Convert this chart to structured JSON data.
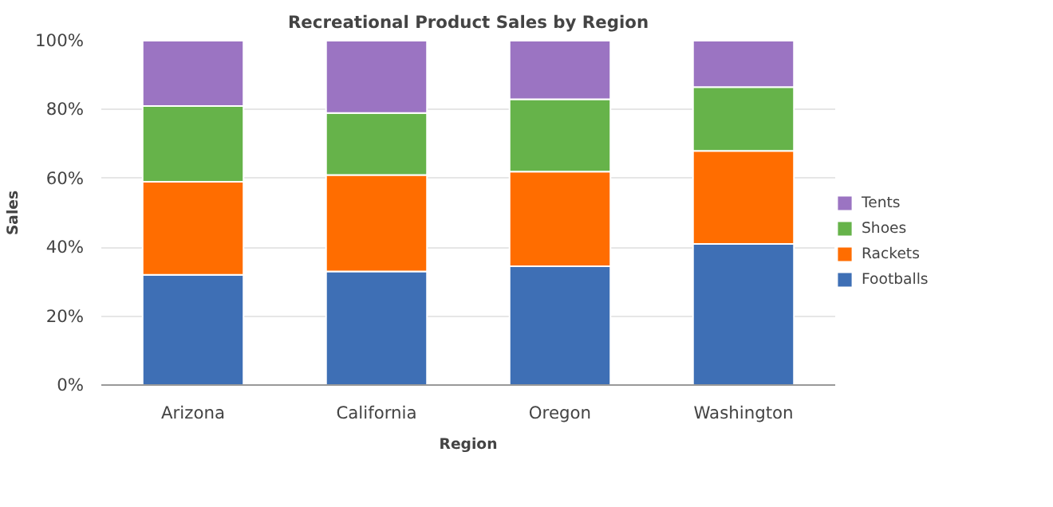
{
  "chart_data": {
    "type": "bar",
    "title": "Recreational Product Sales by Region",
    "xlabel": "Region",
    "ylabel": "Sales",
    "categories": [
      "Arizona",
      "California",
      "Oregon",
      "Washington"
    ],
    "stacked": true,
    "series": [
      {
        "name": "Footballs",
        "color": "#3e6fb5",
        "values": [
          32,
          33,
          34.5,
          41
        ]
      },
      {
        "name": "Rackets",
        "color": "#ff6d00",
        "values": [
          27,
          28,
          27.5,
          27
        ]
      },
      {
        "name": "Shoes",
        "color": "#66b34a",
        "values": [
          22,
          18,
          21,
          18.5
        ]
      },
      {
        "name": "Tents",
        "color": "#9b74c2",
        "values": [
          19,
          21,
          17,
          13.5
        ]
      }
    ],
    "ylim": [
      0,
      100
    ],
    "yticks": [
      {
        "value": 0,
        "label": "0%"
      },
      {
        "value": 20,
        "label": "20%"
      },
      {
        "value": 40,
        "label": "40%"
      },
      {
        "value": 60,
        "label": "60%"
      },
      {
        "value": 80,
        "label": "80%"
      },
      {
        "value": 100,
        "label": "100%"
      }
    ],
    "grid": "y",
    "legend": "right"
  }
}
